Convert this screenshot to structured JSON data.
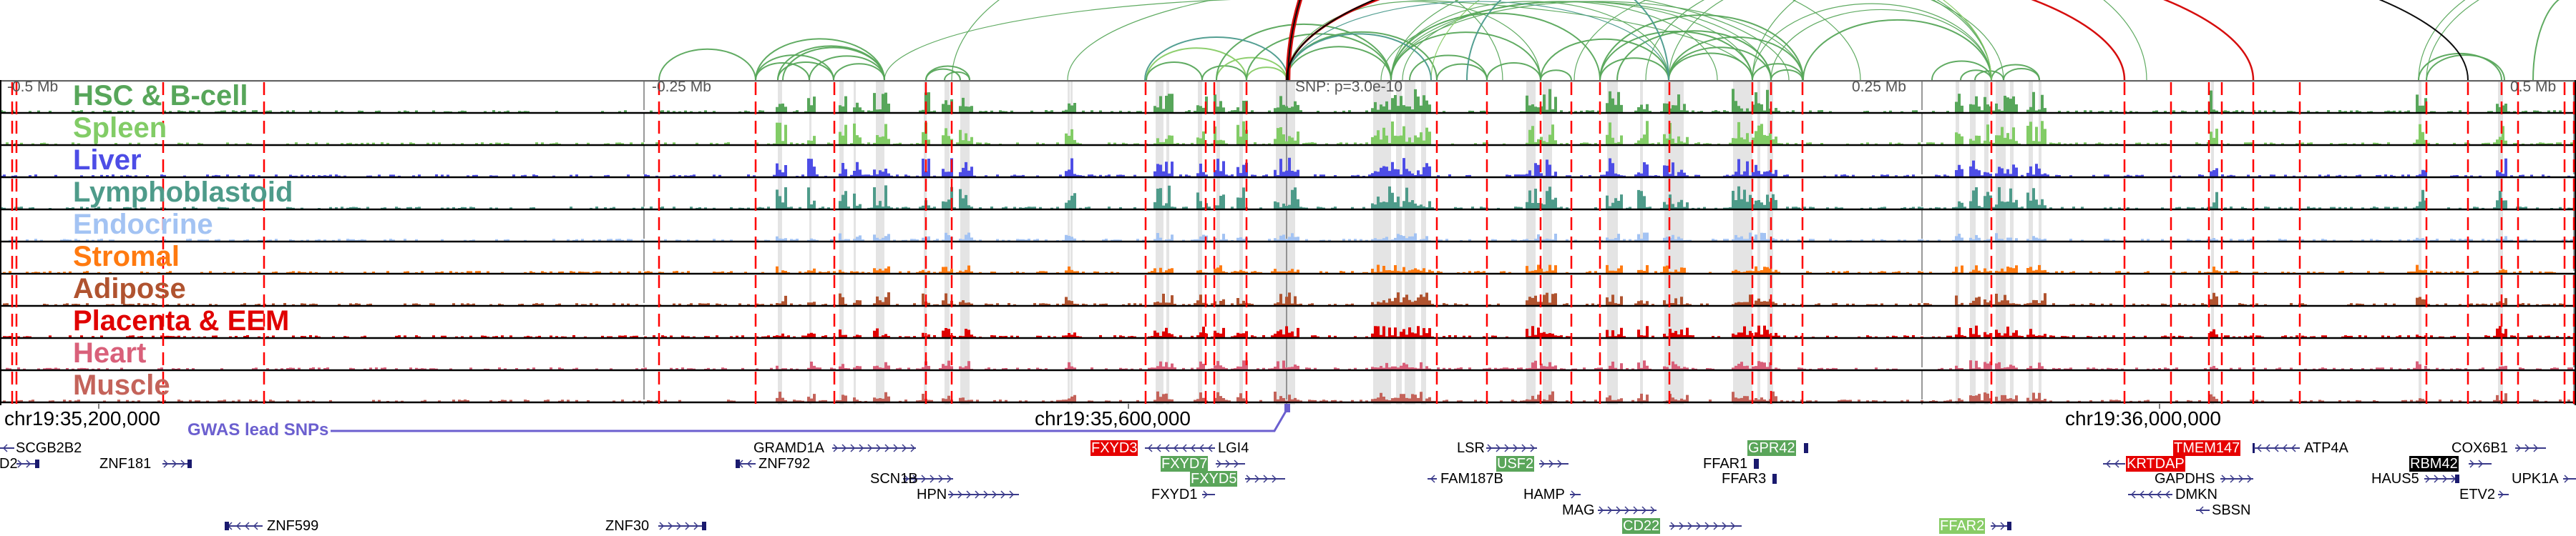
{
  "axis": {
    "left_far": "-0.5 Mb",
    "left_near": "-0.25 Mb",
    "snp": "SNP: p=3.0e-10",
    "right_near": "0.25 Mb",
    "right_far": "0.5 Mb"
  },
  "coordinates": [
    "chr19:35,200,000",
    "chr19:35,600,000",
    "chr19:36,000,000"
  ],
  "gwas_track_label": "GWAS lead SNPs",
  "colors": {
    "gwas": "#6b5fcf",
    "enhancer_line": "#ff0000",
    "shade": "#e4e4e4",
    "arc_green": "#57a65a",
    "arc_light_green": "#88cc66",
    "arc_teal": "#4a9a8c",
    "arc_red": "#d40000",
    "arc_black": "#000000",
    "gene_structure": "#1a1a6e"
  },
  "tracks": [
    {
      "name": "HSC & B-cell",
      "color": "#57a65a"
    },
    {
      "name": "Spleen",
      "color": "#82cc66"
    },
    {
      "name": "Liver",
      "color": "#4d4de6"
    },
    {
      "name": "Lymphoblastoid",
      "color": "#4e9b8a"
    },
    {
      "name": "Endocrine",
      "color": "#a3c3f3"
    },
    {
      "name": "Stromal",
      "color": "#ff7a10"
    },
    {
      "name": "Adipose",
      "color": "#b0532f"
    },
    {
      "name": "Placenta & EEM",
      "color": "#e00000"
    },
    {
      "name": "Heart",
      "color": "#d9607a"
    },
    {
      "name": "Muscle",
      "color": "#c4635a"
    }
  ],
  "genes": [
    {
      "name": "SCGB2B2",
      "highlight": null
    },
    {
      "name": "D2",
      "highlight": null
    },
    {
      "name": "ZNF181",
      "highlight": null
    },
    {
      "name": "GRAMD1A",
      "highlight": null
    },
    {
      "name": "ZNF792",
      "highlight": null
    },
    {
      "name": "ZNF599",
      "highlight": null
    },
    {
      "name": "ZNF30",
      "highlight": null
    },
    {
      "name": "SCN1B",
      "highlight": null
    },
    {
      "name": "HPN",
      "highlight": null
    },
    {
      "name": "FXYD3",
      "highlight": "#e60000"
    },
    {
      "name": "LGI4",
      "highlight": null
    },
    {
      "name": "FXYD7",
      "highlight": "#5aa55a"
    },
    {
      "name": "FXYD5",
      "highlight": "#5aa55a"
    },
    {
      "name": "FXYD1",
      "highlight": null
    },
    {
      "name": "LSR",
      "highlight": null
    },
    {
      "name": "USF2",
      "highlight": "#5aa55a"
    },
    {
      "name": "FAM187B",
      "highlight": null
    },
    {
      "name": "HAMP",
      "highlight": null
    },
    {
      "name": "MAG",
      "highlight": null
    },
    {
      "name": "CD22",
      "highlight": "#5aa55a"
    },
    {
      "name": "GPR42",
      "highlight": "#5aa55a"
    },
    {
      "name": "FFAR1",
      "highlight": null
    },
    {
      "name": "FFAR3",
      "highlight": null
    },
    {
      "name": "FFAR2",
      "highlight": "#88cc66"
    },
    {
      "name": "TMEM147",
      "highlight": "#e60000"
    },
    {
      "name": "ATP4A",
      "highlight": null
    },
    {
      "name": "KRTDAP",
      "highlight": "#e60000"
    },
    {
      "name": "GAPDHS",
      "highlight": null
    },
    {
      "name": "DMKN",
      "highlight": null
    },
    {
      "name": "SBSN",
      "highlight": null
    },
    {
      "name": "HAUS5",
      "highlight": null
    },
    {
      "name": "RBM42",
      "highlight": "#000000"
    },
    {
      "name": "COX6B1",
      "highlight": null
    },
    {
      "name": "UPK1A",
      "highlight": null
    },
    {
      "name": "ETV2",
      "highlight": null
    }
  ]
}
